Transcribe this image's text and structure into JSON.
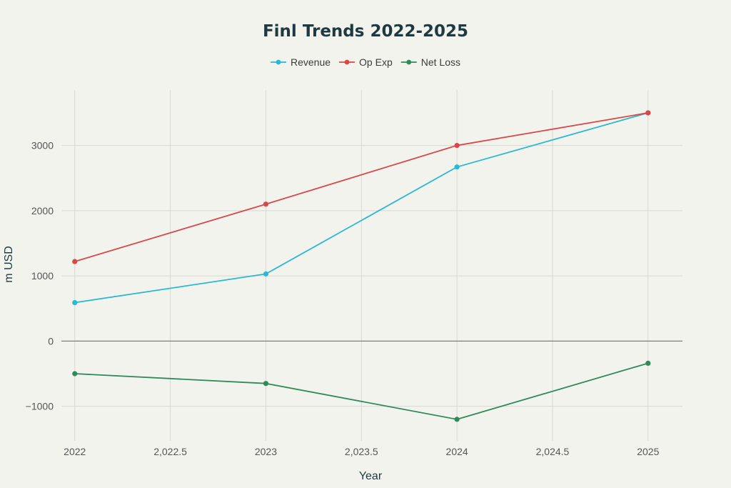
{
  "chart_data": {
    "type": "line",
    "title": "Finl Trends 2022-2025",
    "xlabel": "Year",
    "ylabel": "m USD",
    "x": [
      2022,
      2023,
      2024,
      2025
    ],
    "xlim": [
      2021.93,
      2025.18
    ],
    "ylim": [
      -1530,
      3850
    ],
    "x_ticks": [
      2022,
      2022.5,
      2023,
      2023.5,
      2024,
      2024.5,
      2025
    ],
    "x_tick_labels": [
      "2022",
      "2,022.5",
      "2023",
      "2,023.5",
      "2024",
      "2,024.5",
      "2025"
    ],
    "y_ticks": [
      -1000,
      0,
      1000,
      2000,
      3000
    ],
    "y_tick_labels": [
      "−1000",
      "0",
      "1000",
      "2000",
      "3000"
    ],
    "grid": true,
    "legend_position": "top-center",
    "series": [
      {
        "name": "Revenue",
        "color": "#2bb8d4",
        "values": [
          590,
          1030,
          2670,
          3500
        ]
      },
      {
        "name": "Op Exp",
        "color": "#d94848",
        "values": [
          1220,
          2100,
          3000,
          3500
        ]
      },
      {
        "name": "Net Loss",
        "color": "#2e8b57",
        "values": [
          -500,
          -650,
          -1200,
          -340
        ]
      }
    ]
  }
}
